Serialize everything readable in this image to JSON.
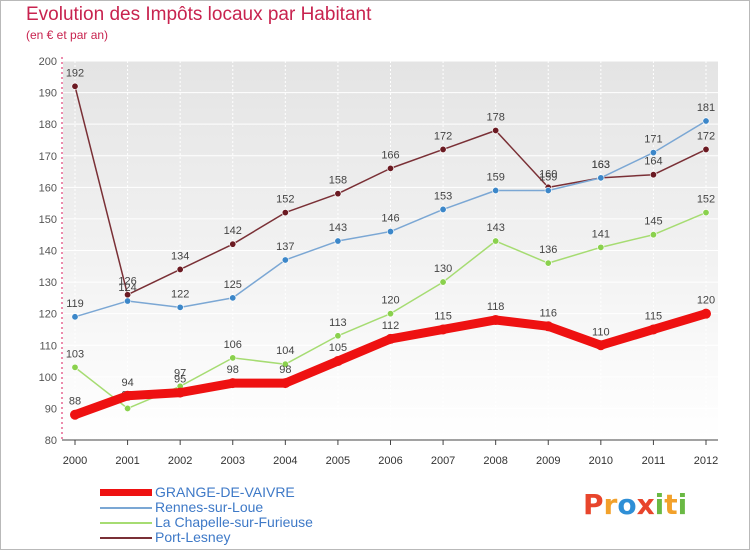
{
  "header": {
    "title": "Evolution des Impôts locaux par Habitant",
    "subtitle": "(en € et par an)"
  },
  "logo": {
    "text": "Proxiti",
    "colors": [
      "#e8452c",
      "#f2a12b",
      "#2f8fd6",
      "#6ab944"
    ]
  },
  "chart_data": {
    "type": "line",
    "x": [
      "2000",
      "2001",
      "2002",
      "2003",
      "2004",
      "2005",
      "2006",
      "2007",
      "2008",
      "2009",
      "2010",
      "2011",
      "2012"
    ],
    "ylim": [
      80,
      200
    ],
    "yticks": [
      "80",
      "90",
      "100",
      "110",
      "120",
      "130",
      "140",
      "150",
      "160",
      "170",
      "180",
      "190",
      "200"
    ],
    "grid": true,
    "legend_position": "bottom-left",
    "series": [
      {
        "name": "GRANGE-DE-VAIVRE",
        "color": "#ee1111",
        "marker_color": "#ee1111",
        "values": [
          88,
          94,
          95,
          98,
          98,
          105,
          112,
          115,
          118,
          116,
          110,
          115,
          120
        ],
        "labels": [
          "88",
          "94",
          "95",
          "98",
          "98",
          "105",
          "112",
          "115",
          "118",
          "116",
          "110",
          "115",
          "120"
        ],
        "thick": true
      },
      {
        "name": "Rennes-sur-Loue",
        "color": "#7ba7d4",
        "marker_color": "#3c87c9",
        "values": [
          119,
          124,
          122,
          125,
          137,
          143,
          146,
          153,
          159,
          159,
          163,
          171,
          181
        ],
        "labels": [
          "119",
          "124",
          "122",
          "125",
          "137",
          "143",
          "146",
          "153",
          "159",
          "159",
          "163",
          "171",
          "181"
        ],
        "thick": false
      },
      {
        "name": "La Chapelle-sur-Furieuse",
        "color": "#a6dc72",
        "marker_color": "#8ad14d",
        "values": [
          103,
          90,
          97,
          106,
          104,
          113,
          120,
          130,
          143,
          136,
          141,
          145,
          152
        ],
        "labels": [
          "103",
          "90",
          "97",
          "106",
          "104",
          "113",
          "120",
          "130",
          "143",
          "136",
          "141",
          "145",
          "152"
        ],
        "thick": false
      },
      {
        "name": "Port-Lesney",
        "color": "#7a3036",
        "marker_color": "#6b1a22",
        "values": [
          192,
          126,
          134,
          142,
          152,
          158,
          166,
          172,
          178,
          160,
          163,
          164,
          172
        ],
        "labels": [
          "192",
          "126",
          "134",
          "142",
          "152",
          "158",
          "166",
          "172",
          "178",
          "160",
          "163",
          "164",
          "172"
        ],
        "thick": false
      }
    ]
  }
}
